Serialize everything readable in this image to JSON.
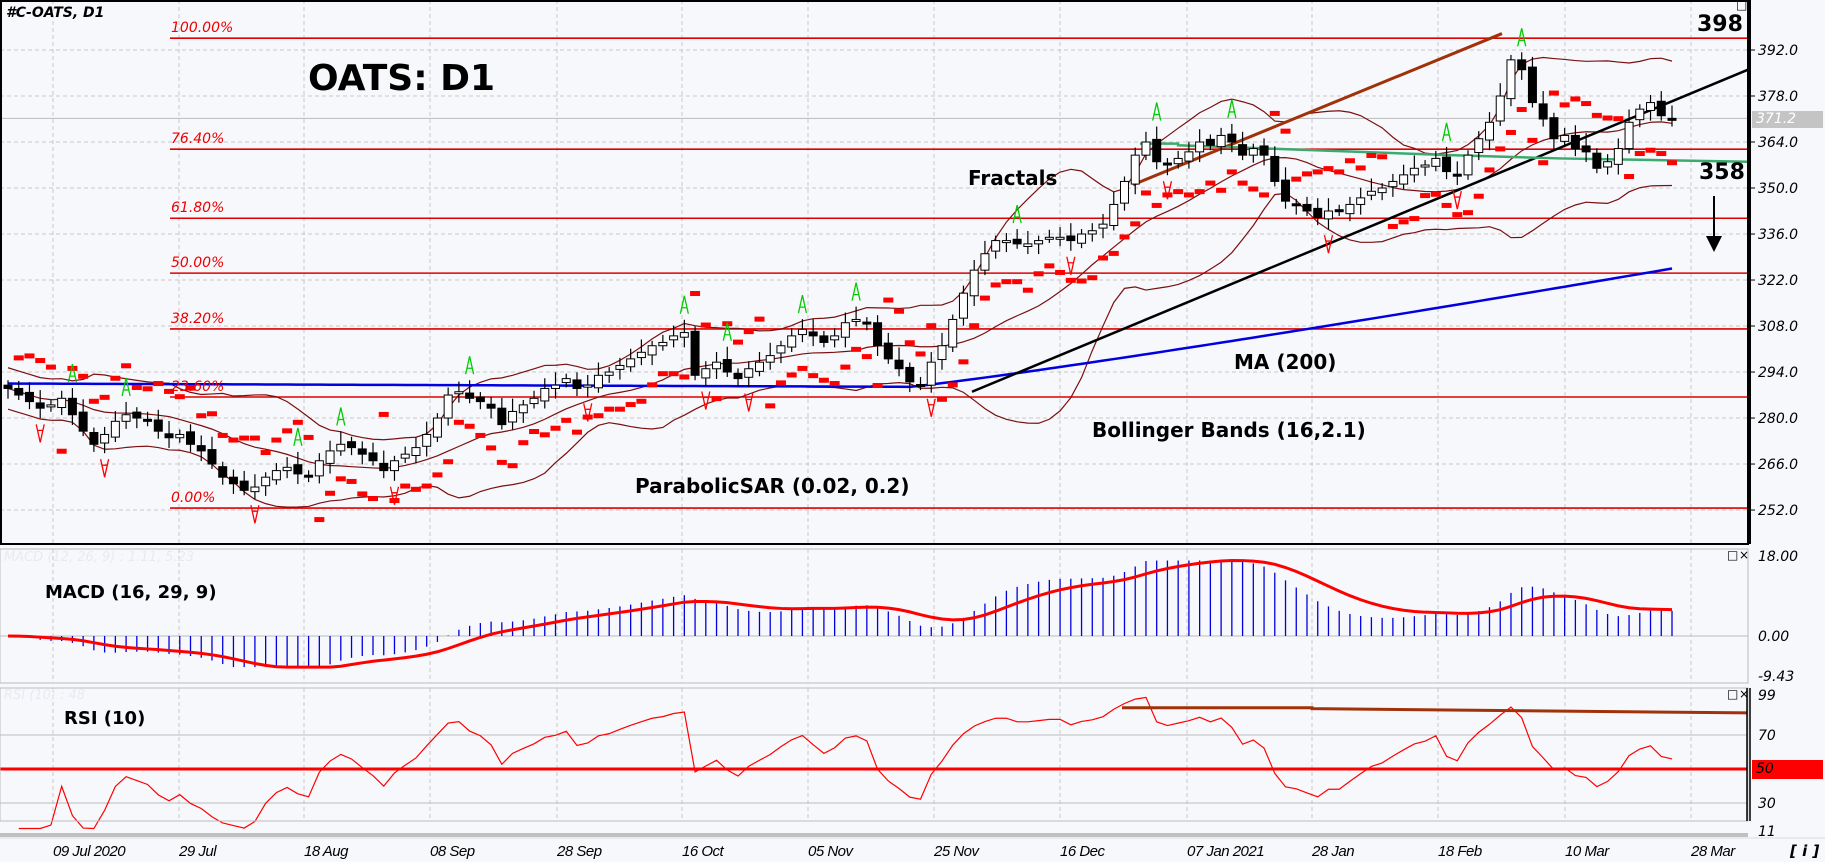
{
  "header": {
    "symbol_label": "#C-OATS, D1",
    "chart_title": "OATS: D1"
  },
  "annotations": {
    "fractals": "Fractals",
    "ma": "MA (200)",
    "bollinger": "Bollinger Bands (16,2.1)",
    "parabolic_sar": "ParabolicSAR (0.02, 0.2)",
    "target_high": "398",
    "target_low": "358"
  },
  "price_axis": {
    "ticks": [
      "392.0",
      "378.0",
      "364.0",
      "350.0",
      "336.0",
      "322.0",
      "308.0",
      "294.0",
      "280.0",
      "266.0",
      "252.0"
    ],
    "current_price": "371.2"
  },
  "fibonacci": {
    "levels": [
      {
        "label": "100.00%",
        "price": 395.6
      },
      {
        "label": "76.40%",
        "price": 361.8
      },
      {
        "label": "61.80%",
        "price": 340.8
      },
      {
        "label": "50.00%",
        "price": 324.1
      },
      {
        "label": "38.20%",
        "price": 307.1
      },
      {
        "label": "23.60%",
        "price": 286.4
      },
      {
        "label": "0.00%",
        "price": 252.6
      }
    ]
  },
  "macd_panel": {
    "header": "MACD (12, 26, 9) : 1.11, 5.23",
    "label": "MACD (16, 29, 9)",
    "ticks": [
      "18.00",
      "0.00",
      "-9.43"
    ]
  },
  "rsi_panel": {
    "header": "RSI (10) : 48",
    "label": "RSI (10)",
    "ticks": [
      "99",
      "70",
      "50",
      "30",
      "11"
    ],
    "highlight_level": "50"
  },
  "date_axis": {
    "labels": [
      "09 Jul 2020",
      "29 Jul",
      "18 Aug",
      "08 Sep",
      "28 Sep",
      "16 Oct",
      "05 Nov",
      "25 Nov",
      "16 Dec",
      "07 Jan 2021",
      "28 Jan",
      "18 Feb",
      "10 Mar",
      "28 Mar"
    ],
    "info_button": "[ i ]"
  },
  "panel_buttons": {
    "maximize": "□",
    "close": "×"
  },
  "colors": {
    "background": "#f7f8fc",
    "fib": "#e00000",
    "ma200": "#0000e0",
    "bollinger": "#7a0f0f",
    "sar": "#ff0000",
    "fractal_up": "#00cc00",
    "fractal_down": "#ff0000",
    "trend_support": "#000000",
    "trend_resistance": "#a0320a",
    "horizontal_green": "#3caa6e",
    "macd_hist": "#0000e0",
    "macd_signal": "#ff0000",
    "rsi_line": "#ff0000"
  },
  "chart_data": {
    "type": "candlestick",
    "title": "OATS: D1",
    "symbol": "#C-OATS, D1",
    "xlabel": "",
    "ylabel": "",
    "ylim": [
      247,
      400
    ],
    "x_tick_labels": [
      "09 Jul 2020",
      "29 Jul",
      "18 Aug",
      "08 Sep",
      "28 Sep",
      "16 Oct",
      "05 Nov",
      "25 Nov",
      "16 Dec",
      "07 Jan 2021",
      "28 Jan",
      "18 Feb",
      "10 Mar",
      "28 Mar"
    ],
    "y_tick_labels": [
      392,
      378,
      364,
      350,
      336,
      322,
      308,
      294,
      280,
      266,
      252
    ],
    "current_price": 371.2,
    "targets": {
      "resistance": 398,
      "support": 358
    },
    "close_series": [
      289,
      287,
      285,
      283,
      284,
      286,
      281,
      276,
      272,
      275,
      279,
      281,
      280,
      279,
      276,
      274,
      275,
      272,
      270,
      266,
      262,
      260,
      258,
      259,
      262,
      264,
      265,
      263,
      262,
      267,
      270,
      272,
      271,
      269,
      267,
      264,
      267,
      269,
      271,
      275,
      280,
      287,
      288,
      286,
      285,
      283,
      278,
      282,
      284,
      286,
      289,
      290,
      292,
      289,
      290,
      293,
      294,
      296,
      298,
      300,
      302,
      303,
      305,
      306,
      293,
      295,
      297,
      294,
      292,
      295,
      297,
      299,
      302,
      305,
      307,
      305,
      303,
      305,
      309,
      310,
      309,
      302,
      298,
      295,
      291,
      290,
      297,
      302,
      310,
      318,
      325,
      330,
      334,
      334,
      333,
      333,
      334,
      335,
      335,
      334,
      336,
      337,
      339,
      345,
      352,
      360,
      364,
      358,
      357,
      359,
      361,
      364,
      363,
      366,
      364,
      360,
      362,
      360,
      352,
      346,
      345,
      343,
      341,
      343,
      343,
      345,
      347,
      349,
      350,
      352,
      354,
      356,
      357,
      359,
      355,
      354,
      360,
      365,
      370,
      378,
      389,
      386,
      376,
      371,
      365,
      366,
      362,
      361,
      356,
      358,
      362,
      370,
      374,
      376,
      372,
      371
    ],
    "ma200": {
      "start": 290.5,
      "flat_until_index": 84,
      "mid": 289.5,
      "end": 325.5
    },
    "macd_hist_range": [
      -7,
      17
    ],
    "rsi_range": [
      11,
      99
    ],
    "rsi_last": 48,
    "macd_last": [
      1.11,
      5.23
    ],
    "fibonacci": [
      {
        "level": "100.00%",
        "price": 395.6
      },
      {
        "level": "76.40%",
        "price": 361.8
      },
      {
        "level": "61.80%",
        "price": 340.8
      },
      {
        "level": "50.00%",
        "price": 324.1
      },
      {
        "level": "38.20%",
        "price": 307.1
      },
      {
        "level": "23.60%",
        "price": 286.4
      },
      {
        "level": "0.00%",
        "price": 252.6
      }
    ],
    "grid": true
  }
}
